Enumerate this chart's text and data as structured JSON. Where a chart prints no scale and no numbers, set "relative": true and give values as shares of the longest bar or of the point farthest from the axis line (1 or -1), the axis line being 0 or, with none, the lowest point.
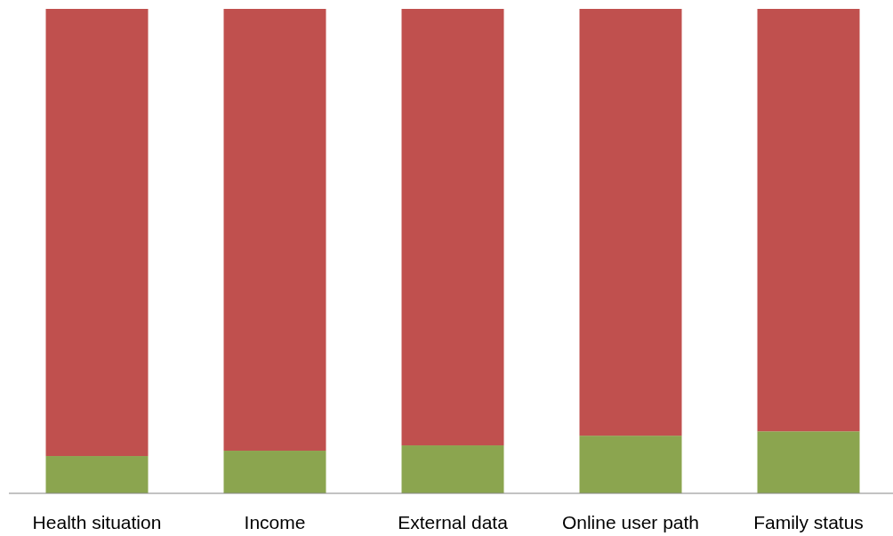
{
  "chart_data": {
    "type": "bar",
    "stacked": true,
    "relative": true,
    "categories": [
      "Health situation",
      "Income",
      "External data",
      "Online user path",
      "Family status"
    ],
    "series": [
      {
        "color": "#8ba54f",
        "values": [
          0.077,
          0.088,
          0.099,
          0.119,
          0.128
        ]
      },
      {
        "color": "#c0504e",
        "values": [
          0.923,
          0.912,
          0.901,
          0.881,
          0.872
        ]
      }
    ]
  }
}
